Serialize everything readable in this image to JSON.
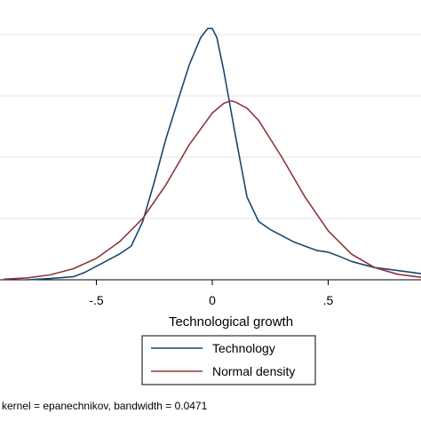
{
  "chart_data": {
    "type": "line",
    "xlabel": "Technological growth",
    "xlim": [
      -1.0,
      0.95
    ],
    "ylim": [
      0,
      4.2
    ],
    "xticks": [
      {
        "value": -0.5,
        "label": "-.5"
      },
      {
        "value": 0,
        "label": "0"
      },
      {
        "value": 0.5,
        "label": ".5"
      }
    ],
    "yticks": [
      1,
      2,
      3,
      4
    ],
    "grid": true,
    "legend_position": "bottom",
    "series": [
      {
        "name": "Technology",
        "color": "#1a476f",
        "x": [
          -0.8,
          -0.7,
          -0.6,
          -0.55,
          -0.5,
          -0.45,
          -0.4,
          -0.35,
          -0.3,
          -0.25,
          -0.2,
          -0.15,
          -0.1,
          -0.05,
          -0.02,
          0.0,
          0.02,
          0.05,
          0.1,
          0.15,
          0.2,
          0.25,
          0.3,
          0.35,
          0.4,
          0.45,
          0.5,
          0.55,
          0.6,
          0.65,
          0.7,
          0.8,
          0.9,
          0.95
        ],
        "y": [
          0.0,
          0.02,
          0.05,
          0.12,
          0.22,
          0.32,
          0.42,
          0.55,
          0.95,
          1.6,
          2.3,
          2.9,
          3.5,
          3.95,
          4.1,
          4.1,
          3.95,
          3.4,
          2.35,
          1.35,
          0.95,
          0.82,
          0.72,
          0.62,
          0.55,
          0.48,
          0.45,
          0.38,
          0.3,
          0.25,
          0.2,
          0.15,
          0.1,
          0.08
        ]
      },
      {
        "name": "Normal density",
        "color": "#90353b",
        "x": [
          -0.9,
          -0.8,
          -0.7,
          -0.6,
          -0.5,
          -0.4,
          -0.3,
          -0.2,
          -0.1,
          0.0,
          0.05,
          0.08,
          0.1,
          0.15,
          0.2,
          0.3,
          0.4,
          0.5,
          0.6,
          0.7,
          0.8,
          0.9,
          0.95
        ],
        "y": [
          0.01,
          0.03,
          0.08,
          0.18,
          0.35,
          0.62,
          1.0,
          1.55,
          2.2,
          2.72,
          2.88,
          2.92,
          2.9,
          2.8,
          2.6,
          2.0,
          1.35,
          0.8,
          0.42,
          0.2,
          0.09,
          0.04,
          0.02
        ]
      }
    ],
    "note": "kernel = epanechnikov, bandwidth = 0.0471"
  }
}
